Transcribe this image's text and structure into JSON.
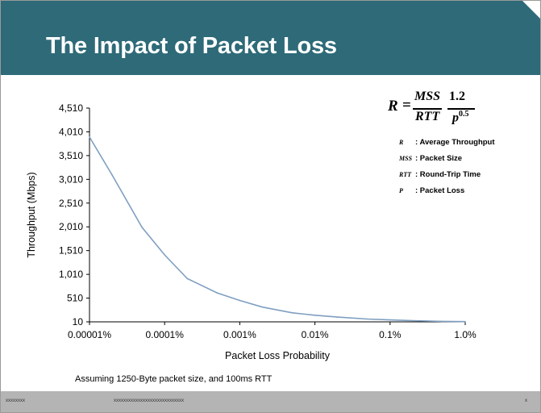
{
  "slide": {
    "title": "The Impact of Packet Loss",
    "footnote": "Assuming 1250-Byte packet size, and 100ms RTT",
    "footer_left": "xxxxxxxx",
    "footer_mid": "xxxxxxxxxxxxxxxxxxxxxxxxxxxxx",
    "footer_page": "x"
  },
  "formula": {
    "lhs": "R",
    "eq": "=",
    "numerator_left": "MSS",
    "denominator_left": "RTT",
    "numerator_right": "1.2",
    "denominator_right_base": "p",
    "denominator_right_exp": "0.5"
  },
  "legend": [
    {
      "symbol": "R",
      "text": ": Average Throughput"
    },
    {
      "symbol": "MSS",
      "text": ": Packet Size"
    },
    {
      "symbol": "RTT",
      "text": ": Round-Trip Time"
    },
    {
      "symbol": "P",
      "text": ": Packet Loss"
    }
  ],
  "colors": {
    "title_bar": "#2e6a78",
    "line": "#7f9fc0",
    "footer": "#b4b4b4"
  },
  "chart_data": {
    "type": "line",
    "xlabel": "Packet Loss Probability",
    "ylabel": "Throughput (Mbps)",
    "x_scale": "log",
    "xlim": [
      "0.00001%",
      "1.0%"
    ],
    "ylim": [
      10,
      4510
    ],
    "x_ticks": [
      "0.00001%",
      "0.0001%",
      "0.001%",
      "0.01%",
      "0.1%",
      "1.0%"
    ],
    "y_ticks": [
      "4,510",
      "4,010",
      "3,510",
      "3,010",
      "2,510",
      "2,010",
      "1,510",
      "1,010",
      "510",
      "10"
    ],
    "y_tick_values": [
      4510,
      4010,
      3510,
      3010,
      2510,
      2010,
      1510,
      1010,
      510,
      10
    ],
    "x_tick_values": [
      1e-05,
      0.0001,
      0.001,
      0.01,
      0.1,
      1.0
    ],
    "x": [
      1e-05,
      2e-05,
      5e-05,
      0.0001,
      0.0002,
      0.0005,
      0.001,
      0.002,
      0.005,
      0.01,
      0.02,
      0.05,
      0.1,
      0.2,
      0.5,
      1.0
    ],
    "values": [
      3900,
      3100,
      2000,
      1420,
      920,
      620,
      460,
      320,
      200,
      150,
      110,
      70,
      50,
      35,
      20,
      15
    ],
    "grid": false,
    "legend": "none"
  }
}
